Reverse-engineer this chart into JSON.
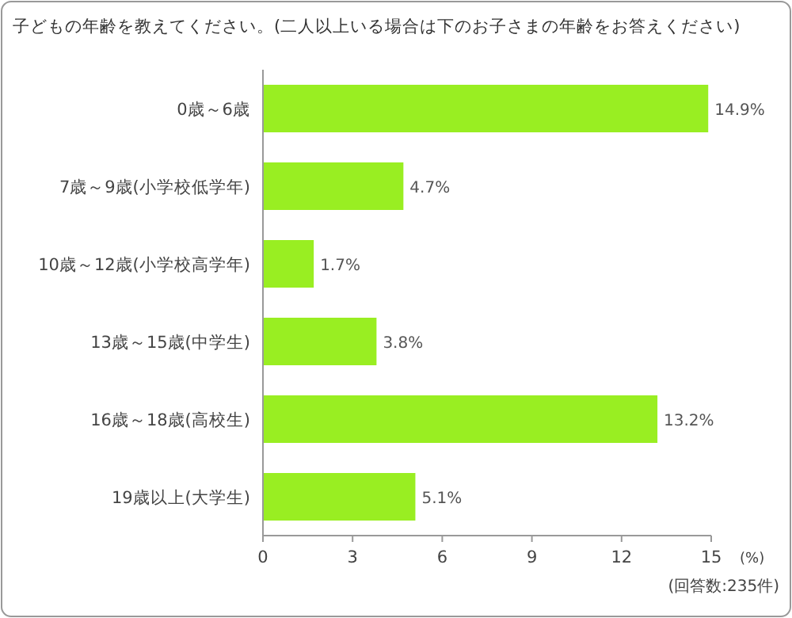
{
  "chart_data": {
    "type": "bar",
    "orientation": "horizontal",
    "title": "子どもの年齢を教えてください。(二人以上いる場合は下のお子さまの年齢をお答えください)",
    "categories": [
      "0歳～6歳",
      "7歳～9歳(小学校低学年)",
      "10歳～12歳(小学校高学年)",
      "13歳～15歳(中学生)",
      "16歳～18歳(高校生)",
      "19歳以上(大学生)"
    ],
    "values": [
      14.9,
      4.7,
      1.7,
      3.8,
      13.2,
      5.1
    ],
    "value_labels": [
      "14.9%",
      "4.7%",
      "1.7%",
      "3.8%",
      "13.2%",
      "5.1%"
    ],
    "color": "#99ee22",
    "xlim": [
      0,
      15
    ],
    "xticks": [
      0,
      3,
      6,
      9,
      12,
      15
    ],
    "xlabel": "(%)",
    "annotations": [
      "(回答数:235件)"
    ],
    "grid": false
  }
}
